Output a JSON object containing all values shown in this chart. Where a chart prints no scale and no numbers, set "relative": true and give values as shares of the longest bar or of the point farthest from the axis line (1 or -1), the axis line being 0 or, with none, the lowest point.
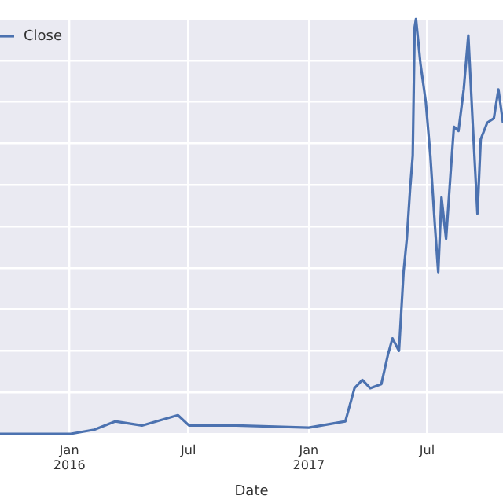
{
  "chart_data": {
    "type": "line",
    "xlabel": "Date",
    "relative": true,
    "grid": true,
    "legend": "top left",
    "marker": "none",
    "line_style": "solid",
    "xlim": [
      "2015-09-17",
      "2017-10-25"
    ],
    "xticks": [
      {
        "value": "2016-01-01",
        "label": "Jan\n2016"
      },
      {
        "value": "2016-07-01",
        "label": "Jul"
      },
      {
        "value": "2017-01-01",
        "label": "Jan\n2017"
      },
      {
        "value": "2017-07-01",
        "label": "Jul"
      }
    ],
    "x": [
      "2015-09-17",
      "2016-01-03",
      "2016-02-08",
      "2016-03-11",
      "2016-04-21",
      "2016-06-15",
      "2016-07-02",
      "2016-09-12",
      "2017-01-01",
      "2017-02-26",
      "2017-03-12",
      "2017-03-24",
      "2017-04-05",
      "2017-04-22",
      "2017-05-02",
      "2017-05-09",
      "2017-05-19",
      "2017-05-26",
      "2017-05-31",
      "2017-06-05",
      "2017-06-09",
      "2017-06-12",
      "2017-06-14",
      "2017-06-21",
      "2017-06-29",
      "2017-07-06",
      "2017-07-13",
      "2017-07-18",
      "2017-07-23",
      "2017-07-30",
      "2017-08-06",
      "2017-08-11",
      "2017-08-18",
      "2017-08-26",
      "2017-09-02",
      "2017-09-09",
      "2017-09-16",
      "2017-09-21",
      "2017-10-01",
      "2017-10-11",
      "2017-10-18",
      "2017-10-25"
    ],
    "series": [
      {
        "name": "Close",
        "color": "#4c72b0",
        "values": [
          0.0,
          0.0,
          0.01,
          0.03,
          0.02,
          0.045,
          0.02,
          0.02,
          0.015,
          0.03,
          0.11,
          0.13,
          0.11,
          0.12,
          0.19,
          0.23,
          0.2,
          0.39,
          0.47,
          0.59,
          0.67,
          0.98,
          1.0,
          0.89,
          0.8,
          0.67,
          0.5,
          0.39,
          0.57,
          0.47,
          0.63,
          0.74,
          0.73,
          0.83,
          0.96,
          0.74,
          0.53,
          0.71,
          0.75,
          0.76,
          0.83,
          0.75
        ]
      }
    ]
  }
}
